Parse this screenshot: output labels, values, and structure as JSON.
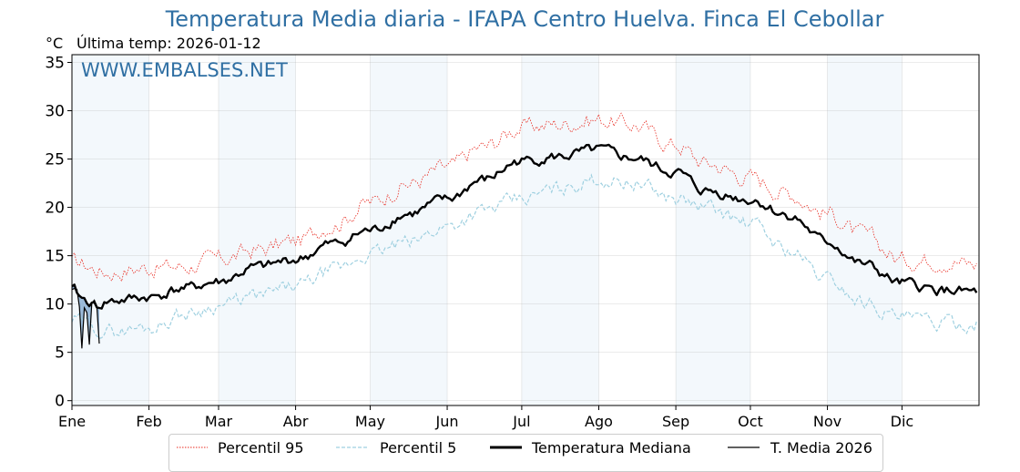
{
  "title": "Temperatura Media diaria - IFAPA Centro Huelva. Finca El Cebollar",
  "unit_label": "°C",
  "last_temp": "Última temp: 2026-01-12",
  "watermark": "WWW.EMBALSES.NET",
  "colors": {
    "title": "#2f6fa3",
    "p95": "#e8281e",
    "p5": "#9fd0e0",
    "median": "#000000",
    "year": "#000000",
    "fill_above": "#f4aaaa",
    "fill_below": "#8fb1d4",
    "month_band": "#ddeaf7"
  },
  "chart_data": {
    "type": "line",
    "ylim": [
      -0.5,
      35.8
    ],
    "xlim": [
      0,
      365
    ],
    "yticks": [
      0,
      5,
      10,
      15,
      20,
      25,
      30,
      35
    ],
    "months": [
      "Ene",
      "Feb",
      "Mar",
      "Abr",
      "May",
      "Jun",
      "Jul",
      "Ago",
      "Sep",
      "Oct",
      "Nov",
      "Dic"
    ],
    "grid": true,
    "legend_position": "bottom-center",
    "series": [
      {
        "name": "Percentil 95",
        "style": "dotted-red",
        "anchors_day": [
          0,
          15,
          31,
          45,
          59,
          75,
          90,
          105,
          120,
          135,
          151,
          165,
          181,
          195,
          212,
          225,
          243,
          255,
          273,
          288,
          304,
          318,
          334,
          350,
          364
        ],
        "anchors_value": [
          14.3,
          13.3,
          13.8,
          13.9,
          14.6,
          15.6,
          16.5,
          18.3,
          20.5,
          22.4,
          24.1,
          26.2,
          28.3,
          28.6,
          29.1,
          28.6,
          26.5,
          24.6,
          23.1,
          21.5,
          19.4,
          17.1,
          14.6,
          14.6,
          14.1
        ]
      },
      {
        "name": "Percentil 5",
        "style": "dashed-lightblue",
        "anchors_day": [
          0,
          15,
          31,
          45,
          59,
          75,
          90,
          105,
          120,
          135,
          151,
          165,
          181,
          195,
          212,
          225,
          243,
          255,
          273,
          288,
          304,
          318,
          334,
          350,
          364
        ],
        "anchors_value": [
          8.3,
          7.2,
          7.6,
          8.9,
          9.9,
          10.8,
          11.8,
          13.4,
          15.2,
          16.3,
          18.1,
          19.6,
          20.8,
          21.9,
          22.9,
          22.6,
          20.9,
          20.0,
          18.3,
          15.6,
          12.6,
          10.3,
          8.6,
          8.0,
          8.0
        ]
      },
      {
        "name": "Temperatura Mediana",
        "style": "solid-thick",
        "anchors_day": [
          0,
          5,
          10,
          15,
          31,
          45,
          59,
          75,
          90,
          105,
          120,
          135,
          151,
          165,
          181,
          195,
          212,
          225,
          243,
          255,
          273,
          288,
          304,
          318,
          334,
          350,
          364
        ],
        "anchors_value": [
          11.5,
          10.4,
          9.8,
          10.3,
          10.7,
          11.6,
          12.3,
          13.8,
          14.6,
          16.2,
          17.6,
          19.3,
          20.8,
          22.8,
          24.8,
          25.2,
          25.9,
          25.1,
          23.6,
          21.7,
          20.8,
          19.2,
          16.4,
          14.1,
          12.1,
          11.4,
          11.2
        ]
      },
      {
        "name": "T. Media 2026",
        "style": "solid-thin",
        "x": [
          0,
          1,
          2,
          3,
          4,
          5,
          6,
          7,
          8,
          9,
          10,
          11
        ],
        "values": [
          11.5,
          11.6,
          11.5,
          9.7,
          5.4,
          9.6,
          9.1,
          5.8,
          10.1,
          10.4,
          9.8,
          5.9
        ]
      }
    ]
  }
}
